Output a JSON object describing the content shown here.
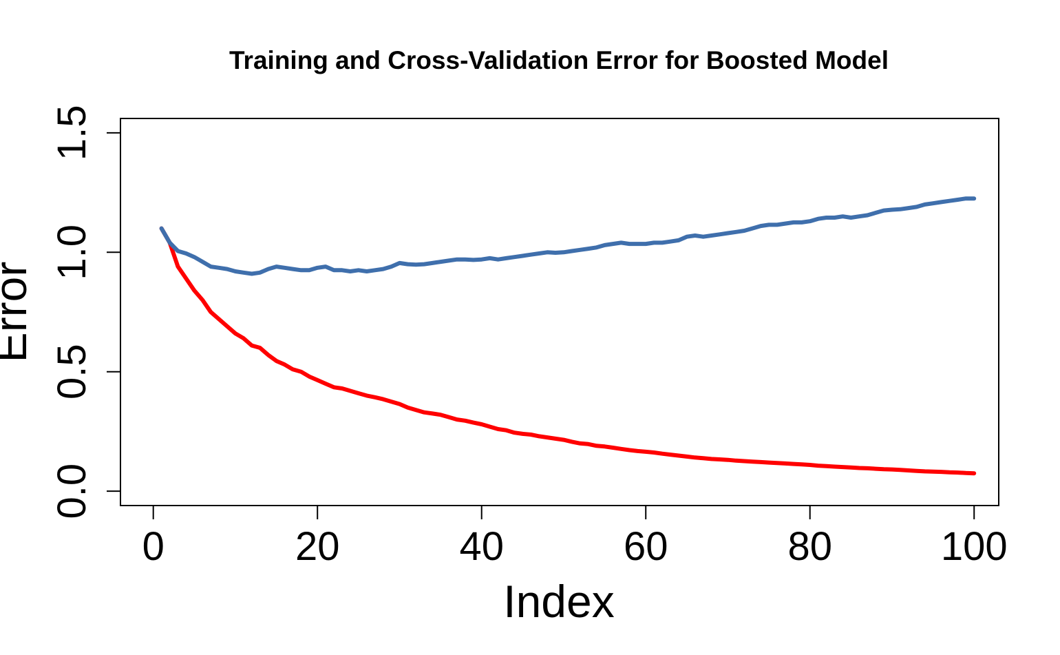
{
  "chart_data": {
    "type": "line",
    "title": "Training and Cross-Validation Error for Boosted Model",
    "xlabel": "Index",
    "ylabel": "Error",
    "xlim": [
      -4,
      103
    ],
    "ylim": [
      -0.06,
      1.56
    ],
    "xticks": [
      0,
      20,
      40,
      60,
      80,
      100
    ],
    "yticks": [
      0.0,
      0.5,
      1.0,
      1.5
    ],
    "xtick_labels": [
      "0",
      "20",
      "40",
      "60",
      "80",
      "100"
    ],
    "ytick_labels": [
      "0.0",
      "0.5",
      "1.0",
      "1.5"
    ],
    "grid": false,
    "legend": null,
    "x": [
      1,
      2,
      3,
      4,
      5,
      6,
      7,
      8,
      9,
      10,
      11,
      12,
      13,
      14,
      15,
      16,
      17,
      18,
      19,
      20,
      21,
      22,
      23,
      24,
      25,
      26,
      27,
      28,
      29,
      30,
      31,
      32,
      33,
      34,
      35,
      36,
      37,
      38,
      39,
      40,
      41,
      42,
      43,
      44,
      45,
      46,
      47,
      48,
      49,
      50,
      51,
      52,
      53,
      54,
      55,
      56,
      57,
      58,
      59,
      60,
      61,
      62,
      63,
      64,
      65,
      66,
      67,
      68,
      69,
      70,
      71,
      72,
      73,
      74,
      75,
      76,
      77,
      78,
      79,
      80,
      81,
      82,
      83,
      84,
      85,
      86,
      87,
      88,
      89,
      90,
      91,
      92,
      93,
      94,
      95,
      96,
      97,
      98,
      99,
      100
    ],
    "series": [
      {
        "color": "#ff0000",
        "values": [
          1.1,
          1.04,
          0.94,
          0.89,
          0.84,
          0.8,
          0.75,
          0.72,
          0.69,
          0.66,
          0.64,
          0.61,
          0.6,
          0.57,
          0.545,
          0.53,
          0.51,
          0.5,
          0.48,
          0.465,
          0.45,
          0.435,
          0.43,
          0.42,
          0.41,
          0.4,
          0.393,
          0.385,
          0.375,
          0.365,
          0.35,
          0.34,
          0.33,
          0.325,
          0.32,
          0.31,
          0.3,
          0.295,
          0.287,
          0.28,
          0.27,
          0.26,
          0.255,
          0.245,
          0.24,
          0.237,
          0.23,
          0.225,
          0.22,
          0.215,
          0.207,
          0.2,
          0.197,
          0.19,
          0.187,
          0.182,
          0.177,
          0.172,
          0.168,
          0.165,
          0.162,
          0.157,
          0.153,
          0.149,
          0.145,
          0.141,
          0.138,
          0.135,
          0.133,
          0.131,
          0.128,
          0.126,
          0.124,
          0.122,
          0.12,
          0.118,
          0.116,
          0.114,
          0.112,
          0.11,
          0.107,
          0.105,
          0.103,
          0.101,
          0.099,
          0.097,
          0.096,
          0.094,
          0.092,
          0.091,
          0.089,
          0.087,
          0.085,
          0.083,
          0.082,
          0.081,
          0.079,
          0.078,
          0.076,
          0.075
        ]
      },
      {
        "color": "#3f6fac",
        "values": [
          1.1,
          1.04,
          1.005,
          0.995,
          0.98,
          0.96,
          0.94,
          0.935,
          0.93,
          0.92,
          0.915,
          0.91,
          0.915,
          0.93,
          0.94,
          0.935,
          0.93,
          0.925,
          0.925,
          0.935,
          0.94,
          0.925,
          0.925,
          0.92,
          0.925,
          0.92,
          0.925,
          0.93,
          0.94,
          0.955,
          0.95,
          0.948,
          0.95,
          0.955,
          0.96,
          0.965,
          0.97,
          0.97,
          0.968,
          0.97,
          0.975,
          0.97,
          0.975,
          0.98,
          0.985,
          0.99,
          0.995,
          1.0,
          0.998,
          1.0,
          1.005,
          1.01,
          1.015,
          1.02,
          1.03,
          1.035,
          1.04,
          1.035,
          1.035,
          1.035,
          1.04,
          1.04,
          1.045,
          1.05,
          1.065,
          1.07,
          1.065,
          1.07,
          1.075,
          1.08,
          1.085,
          1.09,
          1.1,
          1.11,
          1.115,
          1.115,
          1.12,
          1.125,
          1.125,
          1.13,
          1.14,
          1.145,
          1.145,
          1.15,
          1.145,
          1.15,
          1.155,
          1.165,
          1.175,
          1.178,
          1.18,
          1.185,
          1.19,
          1.2,
          1.205,
          1.21,
          1.215,
          1.22,
          1.225,
          1.225
        ]
      }
    ]
  }
}
